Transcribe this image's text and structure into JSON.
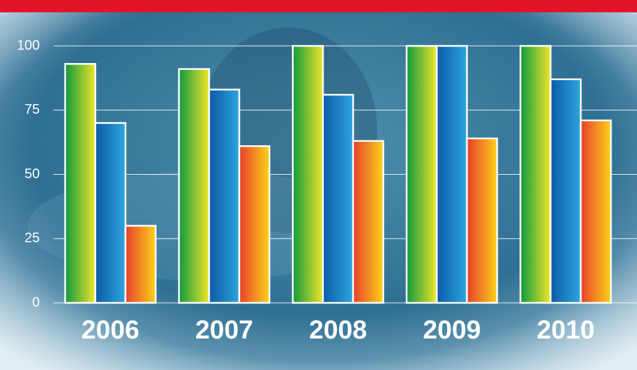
{
  "chart_data": {
    "type": "bar",
    "categories": [
      "2006",
      "2007",
      "2008",
      "2009",
      "2010"
    ],
    "series": [
      {
        "color": "#0f9a3e",
        "values": [
          93,
          91,
          100,
          100,
          100
        ]
      },
      {
        "color": "#0a5aa6",
        "values": [
          70,
          83,
          81,
          100,
          87
        ]
      },
      {
        "color": "#e8402a",
        "values": [
          30,
          61,
          63,
          64,
          71
        ]
      }
    ],
    "ylim": [
      0,
      100
    ],
    "yticks": [
      0,
      25,
      50,
      75,
      100
    ],
    "grid": true
  }
}
